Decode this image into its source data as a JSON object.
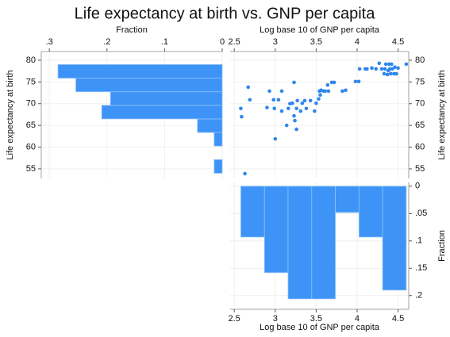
{
  "title": "Life expectancy at birth vs. GNP per capita",
  "chart_data": [
    {
      "type": "histogram",
      "orientation": "horizontal",
      "color": "#3d94f6",
      "grid": true,
      "xlabel": "Fraction",
      "xaxis_position": "top",
      "ylabel": "Life expectancy at birth",
      "yaxis_position": "left",
      "bins": [
        54,
        57.125,
        60.25,
        63.375,
        66.5,
        69.625,
        72.75,
        75.875,
        79
      ],
      "values": [
        0.014,
        0,
        0.014,
        0.043,
        0.209,
        0.194,
        0.254,
        0.285
      ],
      "xlim": [
        0.314,
        0
      ],
      "xticks": [
        {
          "value": 0.3,
          "label": ".3"
        },
        {
          "value": 0.2,
          "label": ".2"
        },
        {
          "value": 0.1,
          "label": ".1"
        },
        0
      ],
      "ylim": [
        52.8,
        82
      ],
      "yticks": [
        55,
        60,
        65,
        70,
        75,
        80
      ]
    },
    {
      "type": "scatter",
      "color": "#2f86ec",
      "grid": true,
      "xlabel": "Log base 10 of GNP per capita",
      "xaxis_position": "top",
      "ylabel": "Life expectancy at birth",
      "yaxis_position": "right",
      "x": [
        2.58,
        2.59,
        2.63,
        2.67,
        2.69,
        2.9,
        2.93,
        2.98,
        2.99,
        3.0,
        3.04,
        3.08,
        3.08,
        3.14,
        3.16,
        3.18,
        3.21,
        3.23,
        3.23,
        3.24,
        3.26,
        3.26,
        3.27,
        3.31,
        3.33,
        3.36,
        3.38,
        3.43,
        3.48,
        3.5,
        3.53,
        3.54,
        3.55,
        3.56,
        3.59,
        3.61,
        3.64,
        3.65,
        3.69,
        3.72,
        3.82,
        3.86,
        3.98,
        4.02,
        4.03,
        4.1,
        4.12,
        4.18,
        4.23,
        4.27,
        4.3,
        4.33,
        4.34,
        4.35,
        4.37,
        4.38,
        4.39,
        4.4,
        4.41,
        4.42,
        4.43,
        4.45,
        4.46,
        4.48,
        4.5,
        4.6
      ],
      "values": [
        68.9,
        67.0,
        53.9,
        73.8,
        70.9,
        69.1,
        72.9,
        70.9,
        68.9,
        61.9,
        70.9,
        68.3,
        72.9,
        65.0,
        68.9,
        70.0,
        70.1,
        67.2,
        74.9,
        66.1,
        64.1,
        68.9,
        70.7,
        68.3,
        70.1,
        70.7,
        68.9,
        70.7,
        68.3,
        70.1,
        71.1,
        72.9,
        72.0,
        73.1,
        72.9,
        72.9,
        74.3,
        72.9,
        74.9,
        74.9,
        72.9,
        73.1,
        75.1,
        75.1,
        78.0,
        78.0,
        78.0,
        78.2,
        78.0,
        79.3,
        78.0,
        76.9,
        78.0,
        79.1,
        76.7,
        77.6,
        79.1,
        78.0,
        76.9,
        79.1,
        78.0,
        76.9,
        78.4,
        76.9,
        78.2,
        79.1
      ],
      "xlim": [
        2.45,
        4.63
      ],
      "xticks": [
        2.5,
        3,
        3.5,
        4,
        4.5
      ],
      "ylim": [
        52.8,
        82
      ],
      "yticks": [
        55,
        60,
        65,
        70,
        75,
        80
      ]
    },
    {
      "type": "histogram",
      "orientation": "vertical",
      "color": "#3d94f6",
      "grid": true,
      "xlabel": "Log base 10 of GNP per capita",
      "xaxis_position": "bottom",
      "ylabel": "Fraction",
      "yaxis_position": "right",
      "bins": [
        2.58,
        2.869,
        3.157,
        3.446,
        3.734,
        4.023,
        4.311,
        4.6
      ],
      "values": [
        0.093,
        0.158,
        0.206,
        0.206,
        0.048,
        0.093,
        0.19
      ],
      "xlim": [
        2.45,
        4.63
      ],
      "xticks": [
        2.5,
        3,
        3.5,
        4,
        4.5
      ],
      "ylim": [
        -0.007,
        0.225
      ],
      "yticks": [
        0,
        {
          "value": 0.05,
          "label": ".05"
        },
        {
          "value": 0.1,
          "label": ".1"
        },
        {
          "value": 0.15,
          "label": ".15"
        },
        {
          "value": 0.2,
          "label": ".2"
        }
      ]
    }
  ]
}
